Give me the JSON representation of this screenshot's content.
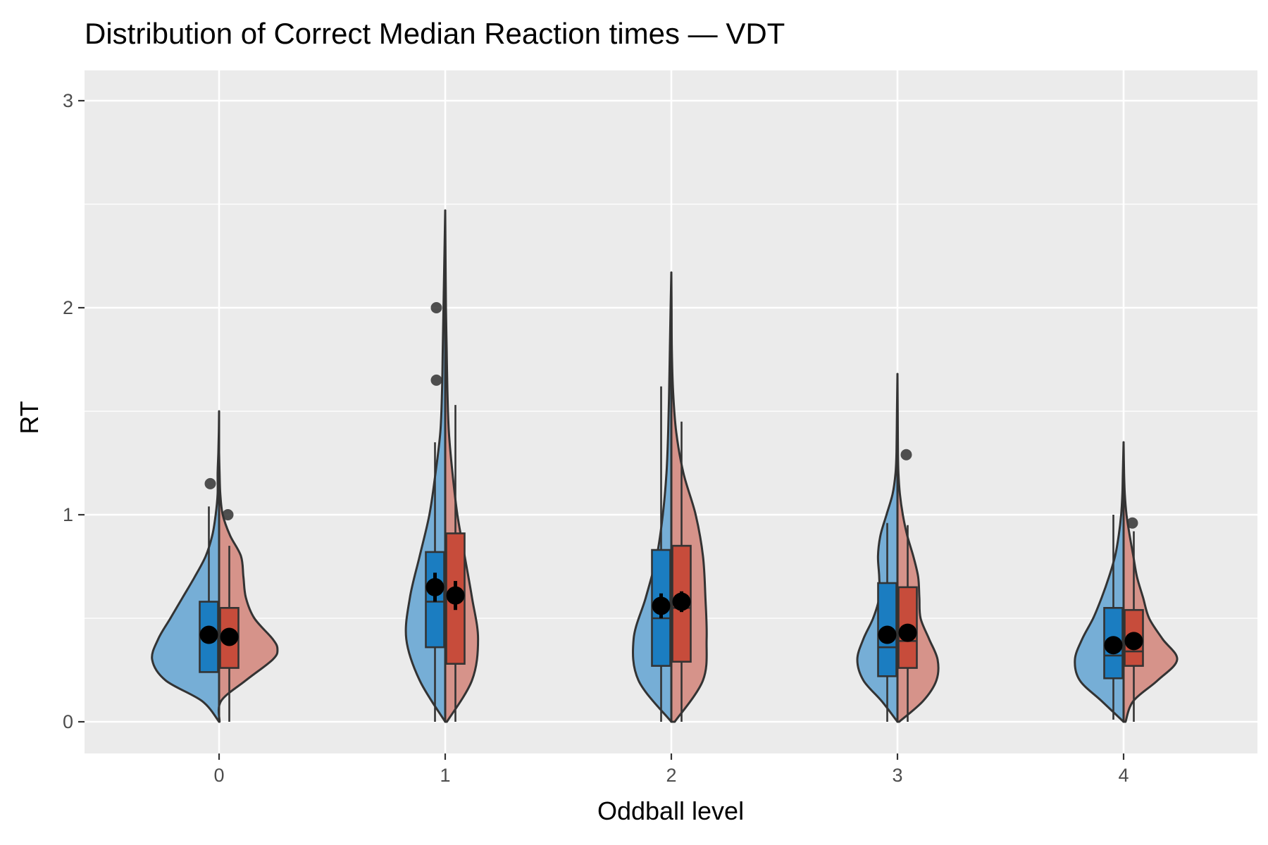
{
  "chart_data": {
    "type": "violin",
    "title": "Distribution of Correct Median Reaction times — VDT",
    "xlabel": "Oddball level",
    "ylabel": "RT",
    "categories": [
      "0",
      "1",
      "2",
      "3",
      "4"
    ],
    "yticks": [
      "0",
      "1",
      "2",
      "3"
    ],
    "ylim": [
      -0.15,
      3.15
    ],
    "grid": true,
    "legend": "none",
    "colors": {
      "panel": "#EBEBEB",
      "grid": "#FFFFFF",
      "left_violin": "#76AED6",
      "right_violin": "#D6938A",
      "left_box": "#1B7DC1",
      "right_box": "#C74C3B",
      "outline": "#333333",
      "mean": "#000000"
    },
    "groups": [
      {
        "level": "0",
        "left": {
          "violin": [
            [
              0,
              0.0
            ],
            [
              0.1,
              0.7
            ],
            [
              0.2,
              2.2
            ],
            [
              0.3,
              2.75
            ],
            [
              0.4,
              2.5
            ],
            [
              0.5,
              2.0
            ],
            [
              0.6,
              1.5
            ],
            [
              0.7,
              1.0
            ],
            [
              0.8,
              0.55
            ],
            [
              0.9,
              0.28
            ],
            [
              1.0,
              0.14
            ],
            [
              1.1,
              0.06
            ],
            [
              1.2,
              0.06
            ],
            [
              1.3,
              0.03
            ],
            [
              1.4,
              0.01
            ],
            [
              1.5,
              0.0
            ]
          ],
          "box": {
            "lower": 0.24,
            "q1": 0.24,
            "median": 0.41,
            "q3": 0.58,
            "upper": 1.04
          },
          "mean": 0.42,
          "se": 0.02,
          "outliers": [
            1.15
          ]
        },
        "right": {
          "violin": [
            [
              0,
              0.02
            ],
            [
              0.1,
              0.08
            ],
            [
              0.2,
              1.1
            ],
            [
              0.3,
              2.2
            ],
            [
              0.35,
              2.4
            ],
            [
              0.4,
              2.2
            ],
            [
              0.5,
              1.45
            ],
            [
              0.6,
              1.1
            ],
            [
              0.7,
              1.0
            ],
            [
              0.8,
              0.9
            ],
            [
              0.9,
              0.45
            ],
            [
              1.0,
              0.15
            ],
            [
              1.1,
              0.05
            ],
            [
              1.2,
              0.02
            ],
            [
              1.3,
              0.0
            ]
          ],
          "box": {
            "lower": 0.0,
            "q1": 0.26,
            "median": 0.41,
            "q3": 0.55,
            "upper": 0.85
          },
          "mean": 0.41,
          "se": 0.02,
          "outliers": [
            1.0
          ]
        }
      },
      {
        "level": "1",
        "left": {
          "violin": [
            [
              0,
              0.0
            ],
            [
              0.2,
              1.05
            ],
            [
              0.4,
              1.6
            ],
            [
              0.6,
              1.45
            ],
            [
              0.8,
              1.05
            ],
            [
              1.0,
              0.65
            ],
            [
              1.2,
              0.4
            ],
            [
              1.4,
              0.2
            ],
            [
              1.6,
              0.13
            ],
            [
              1.8,
              0.1
            ],
            [
              2.0,
              0.07
            ],
            [
              2.2,
              0.04
            ],
            [
              2.47,
              0.0
            ]
          ],
          "box": {
            "lower": 0.0,
            "q1": 0.36,
            "median": 0.58,
            "q3": 0.82,
            "upper": 1.35
          },
          "mean": 0.65,
          "se": 0.07,
          "outliers": [
            1.65,
            2.0
          ]
        },
        "right": {
          "violin": [
            [
              0,
              0.07
            ],
            [
              0.2,
              1.1
            ],
            [
              0.4,
              1.35
            ],
            [
              0.6,
              1.1
            ],
            [
              0.8,
              0.8
            ],
            [
              1.0,
              0.5
            ],
            [
              1.2,
              0.3
            ],
            [
              1.4,
              0.15
            ],
            [
              1.6,
              0.09
            ],
            [
              1.8,
              0.06
            ],
            [
              2.0,
              0.03
            ],
            [
              2.3,
              0.01
            ],
            [
              2.47,
              0.0
            ]
          ],
          "box": {
            "lower": 0.0,
            "q1": 0.28,
            "median": 0.6,
            "q3": 0.91,
            "upper": 1.53
          },
          "mean": 0.61,
          "se": 0.07,
          "outliers": []
        }
      },
      {
        "level": "2",
        "left": {
          "violin": [
            [
              0,
              0.0
            ],
            [
              0.2,
              1.35
            ],
            [
              0.4,
              1.55
            ],
            [
              0.6,
              1.05
            ],
            [
              0.8,
              0.6
            ],
            [
              1.0,
              0.35
            ],
            [
              1.2,
              0.2
            ],
            [
              1.4,
              0.13
            ],
            [
              1.6,
              0.09
            ],
            [
              1.8,
              0.06
            ],
            [
              2.0,
              0.03
            ],
            [
              2.17,
              0.0
            ]
          ],
          "box": {
            "lower": 0.0,
            "q1": 0.27,
            "median": 0.5,
            "q3": 0.83,
            "upper": 1.62
          },
          "mean": 0.56,
          "se": 0.06,
          "outliers": []
        },
        "right": {
          "violin": [
            [
              0,
              0.14
            ],
            [
              0.2,
              1.3
            ],
            [
              0.4,
              1.45
            ],
            [
              0.6,
              1.4
            ],
            [
              0.8,
              1.3
            ],
            [
              1.0,
              1.0
            ],
            [
              1.2,
              0.5
            ],
            [
              1.4,
              0.2
            ],
            [
              1.6,
              0.07
            ],
            [
              1.8,
              0.02
            ],
            [
              2.0,
              0.01
            ],
            [
              2.17,
              0.0
            ]
          ],
          "box": {
            "lower": 0.0,
            "q1": 0.29,
            "median": 0.55,
            "q3": 0.85,
            "upper": 1.45
          },
          "mean": 0.58,
          "se": 0.05,
          "outliers": []
        }
      },
      {
        "level": "3",
        "left": {
          "violin": [
            [
              0,
              0.0
            ],
            [
              0.1,
              0.65
            ],
            [
              0.2,
              1.4
            ],
            [
              0.3,
              1.65
            ],
            [
              0.4,
              1.4
            ],
            [
              0.5,
              1.0
            ],
            [
              0.6,
              0.75
            ],
            [
              0.7,
              0.75
            ],
            [
              0.8,
              0.8
            ],
            [
              0.9,
              0.7
            ],
            [
              1.0,
              0.45
            ],
            [
              1.1,
              0.2
            ],
            [
              1.2,
              0.08
            ],
            [
              1.3,
              0.04
            ],
            [
              1.5,
              0.02
            ],
            [
              1.68,
              0.0
            ]
          ],
          "box": {
            "lower": 0.0,
            "q1": 0.22,
            "median": 0.36,
            "q3": 0.67,
            "upper": 0.96
          },
          "mean": 0.42,
          "se": 0.03,
          "outliers": []
        },
        "right": {
          "violin": [
            [
              0,
              0.07
            ],
            [
              0.1,
              1.05
            ],
            [
              0.2,
              1.6
            ],
            [
              0.3,
              1.65
            ],
            [
              0.4,
              1.3
            ],
            [
              0.5,
              0.95
            ],
            [
              0.6,
              0.9
            ],
            [
              0.7,
              0.85
            ],
            [
              0.8,
              0.65
            ],
            [
              0.9,
              0.4
            ],
            [
              1.0,
              0.22
            ],
            [
              1.1,
              0.1
            ],
            [
              1.2,
              0.04
            ],
            [
              1.3,
              0.02
            ],
            [
              1.5,
              0.01
            ],
            [
              1.68,
              0.0
            ]
          ],
          "box": {
            "lower": 0.0,
            "q1": 0.26,
            "median": 0.39,
            "q3": 0.65,
            "upper": 0.95
          },
          "mean": 0.43,
          "se": 0.03,
          "outliers": [
            1.29
          ]
        }
      },
      {
        "level": "4",
        "left": {
          "violin": [
            [
              0,
              0.0
            ],
            [
              0.1,
              0.9
            ],
            [
              0.2,
              1.8
            ],
            [
              0.3,
              2.0
            ],
            [
              0.4,
              1.7
            ],
            [
              0.5,
              1.25
            ],
            [
              0.6,
              0.9
            ],
            [
              0.7,
              0.6
            ],
            [
              0.8,
              0.35
            ],
            [
              0.9,
              0.2
            ],
            [
              1.0,
              0.1
            ],
            [
              1.1,
              0.05
            ],
            [
              1.2,
              0.03
            ],
            [
              1.35,
              0.0
            ]
          ],
          "box": {
            "lower": 0.01,
            "q1": 0.21,
            "median": 0.32,
            "q3": 0.55,
            "upper": 1.0
          },
          "mean": 0.37,
          "se": 0.02,
          "outliers": []
        },
        "right": {
          "violin": [
            [
              0,
              0.08
            ],
            [
              0.1,
              0.4
            ],
            [
              0.2,
              1.4
            ],
            [
              0.3,
              2.2
            ],
            [
              0.4,
              1.6
            ],
            [
              0.5,
              1.05
            ],
            [
              0.6,
              0.8
            ],
            [
              0.7,
              0.55
            ],
            [
              0.8,
              0.4
            ],
            [
              0.9,
              0.25
            ],
            [
              1.0,
              0.12
            ],
            [
              1.1,
              0.05
            ],
            [
              1.2,
              0.02
            ],
            [
              1.35,
              0.0
            ]
          ],
          "box": {
            "lower": 0.0,
            "q1": 0.27,
            "median": 0.34,
            "q3": 0.54,
            "upper": 0.92
          },
          "mean": 0.39,
          "se": 0.02,
          "outliers": [
            0.96
          ]
        }
      }
    ]
  }
}
